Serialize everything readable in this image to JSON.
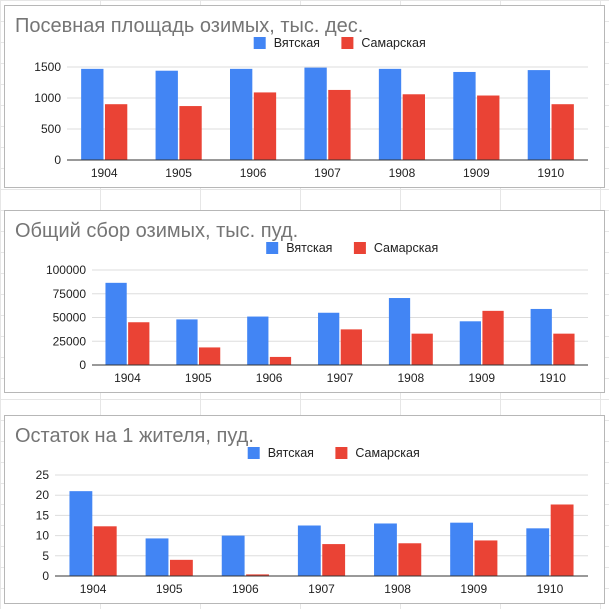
{
  "colors": {
    "series1": "#4285f4",
    "series2": "#ea4335"
  },
  "chart_data": [
    {
      "type": "bar",
      "title": "Посевная площадь озимых, тыс. дес.",
      "categories": [
        "1904",
        "1905",
        "1906",
        "1907",
        "1908",
        "1909",
        "1910"
      ],
      "series": [
        {
          "name": "Вятская",
          "values": [
            1470,
            1440,
            1470,
            1490,
            1470,
            1420,
            1450
          ]
        },
        {
          "name": "Самарская",
          "values": [
            900,
            870,
            1090,
            1130,
            1060,
            1040,
            900
          ]
        }
      ],
      "yticks": [
        0,
        500,
        1000,
        1500
      ],
      "ytick_labels": [
        "0",
        "500",
        "1000",
        "1500"
      ],
      "ylim": [
        0,
        1500
      ],
      "legend": "top-center",
      "xlabel": "",
      "ylabel": ""
    },
    {
      "type": "bar",
      "title": "Общий сбор озимых, тыс. пуд.",
      "categories": [
        "1904",
        "1905",
        "1906",
        "1907",
        "1908",
        "1909",
        "1910"
      ],
      "series": [
        {
          "name": "Вятская",
          "values": [
            86500,
            48000,
            51000,
            55000,
            70500,
            46000,
            59000
          ]
        },
        {
          "name": "Самарская",
          "values": [
            45000,
            18500,
            8500,
            37500,
            33000,
            57000,
            33000
          ]
        }
      ],
      "yticks": [
        0,
        25000,
        50000,
        75000,
        100000
      ],
      "ytick_labels": [
        "0",
        "25000",
        "50000",
        "75000",
        "100000"
      ],
      "ylim": [
        0,
        100000
      ],
      "legend": "top-center",
      "xlabel": "",
      "ylabel": ""
    },
    {
      "type": "bar",
      "title": "Остаток на 1 жителя, пуд.",
      "categories": [
        "1904",
        "1905",
        "1906",
        "1907",
        "1908",
        "1909",
        "1910"
      ],
      "series": [
        {
          "name": "Вятская",
          "values": [
            21,
            9.3,
            10,
            12.5,
            13,
            13.2,
            11.8
          ]
        },
        {
          "name": "Самарская",
          "values": [
            12.3,
            4,
            0.4,
            7.9,
            8.1,
            8.8,
            17.7
          ]
        }
      ],
      "yticks": [
        0,
        5,
        10,
        15,
        20,
        25
      ],
      "ytick_labels": [
        "0",
        "5",
        "10",
        "15",
        "20",
        "25"
      ],
      "ylim": [
        0,
        25
      ],
      "legend": "top-center",
      "xlabel": "",
      "ylabel": ""
    }
  ]
}
